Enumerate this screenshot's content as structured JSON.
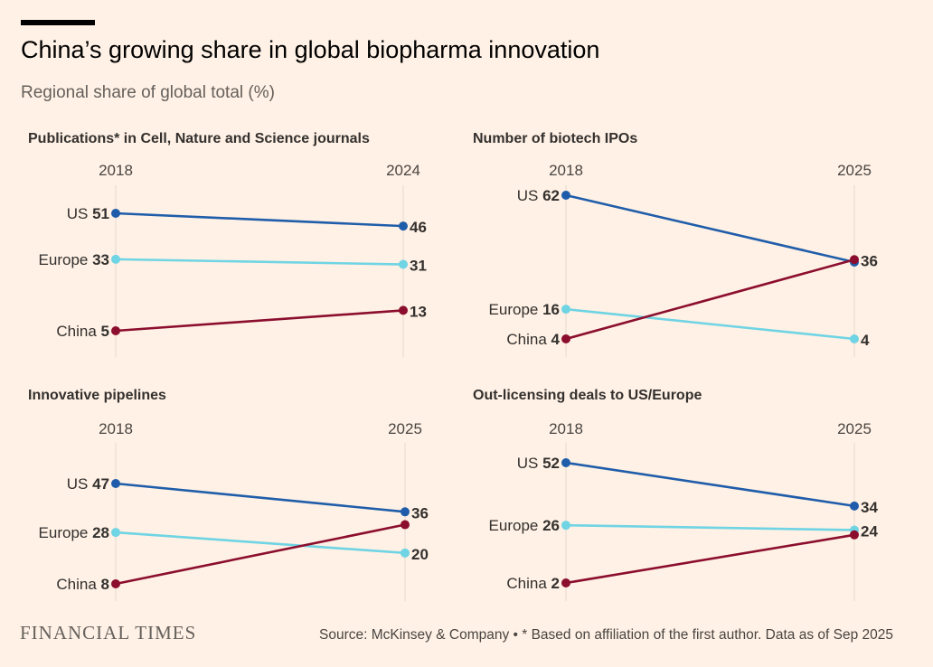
{
  "title": "China’s growing share in global biopharma innovation",
  "subtitle": "Regional share of global total (%)",
  "footer": {
    "logo": "FINANCIAL TIMES",
    "source": "Source: McKinsey & Company • * Based on affiliation of the first author. Data as of Sep 2025"
  },
  "colors": {
    "US": "#1F5DAA",
    "Europe": "#6FD4E4",
    "China": "#8B0E2E"
  },
  "chart_data": [
    {
      "type": "line",
      "title": "Publications* in Cell, Nature and Science journals",
      "x": [
        "2018",
        "2024"
      ],
      "series": [
        {
          "name": "US",
          "values": [
            51,
            46
          ]
        },
        {
          "name": "Europe",
          "values": [
            33,
            31
          ]
        },
        {
          "name": "China",
          "values": [
            5,
            13
          ]
        }
      ]
    },
    {
      "type": "line",
      "title": "Number of biotech IPOs",
      "x": [
        "2018",
        "2025"
      ],
      "series": [
        {
          "name": "US",
          "values": [
            62,
            35
          ],
          "end_label": ""
        },
        {
          "name": "Europe",
          "values": [
            16,
            4
          ]
        },
        {
          "name": "China",
          "values": [
            4,
            36
          ]
        }
      ]
    },
    {
      "type": "line",
      "title": "Innovative pipelines",
      "x": [
        "2018",
        "2025"
      ],
      "series": [
        {
          "name": "US",
          "values": [
            47,
            36
          ]
        },
        {
          "name": "Europe",
          "values": [
            28,
            20
          ]
        },
        {
          "name": "China",
          "values": [
            8,
            31
          ],
          "end_label": ""
        }
      ]
    },
    {
      "type": "line",
      "title": "Out-licensing deals to US/Europe",
      "x": [
        "2018",
        "2025"
      ],
      "series": [
        {
          "name": "US",
          "values": [
            52,
            34
          ]
        },
        {
          "name": "Europe",
          "values": [
            26,
            24
          ]
        },
        {
          "name": "China",
          "values": [
            2,
            22
          ],
          "end_label": ""
        }
      ]
    }
  ]
}
